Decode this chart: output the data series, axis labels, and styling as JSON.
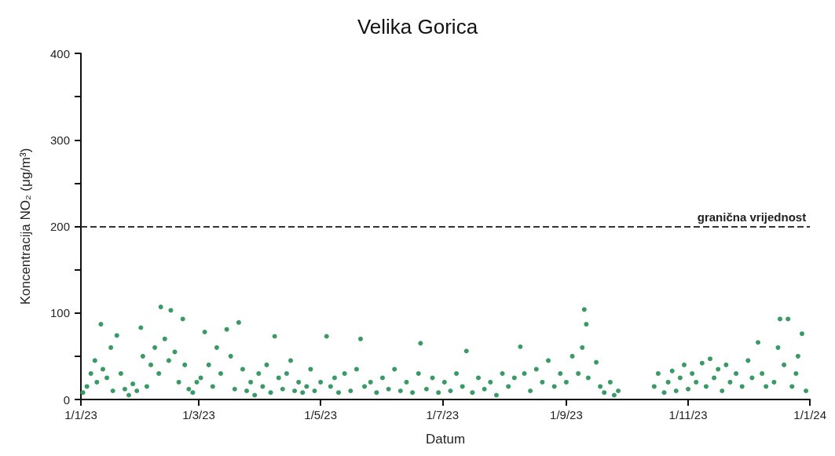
{
  "chart_data": {
    "type": "scatter",
    "title": "Velika Gorica",
    "xlabel": "Datum",
    "ylabel": "Koncentracija NO₂ (μg/m³)",
    "xlim": [
      "2023-01-01",
      "2024-01-01"
    ],
    "xticks": [
      {
        "value": "2023-01-01",
        "label": "1/1/23"
      },
      {
        "value": "2023-03-01",
        "label": "1/3/23"
      },
      {
        "value": "2023-05-01",
        "label": "1/5/23"
      },
      {
        "value": "2023-07-01",
        "label": "1/7/23"
      },
      {
        "value": "2023-09-01",
        "label": "1/9/23"
      },
      {
        "value": "2023-11-01",
        "label": "1/11/23"
      },
      {
        "value": "2024-01-01",
        "label": "1/1/24"
      }
    ],
    "ylim": [
      0,
      400
    ],
    "yticks": [
      0,
      {
        "value": 50,
        "label": null
      },
      100,
      {
        "value": 150,
        "label": null
      },
      200,
      {
        "value": 250,
        "label": null
      },
      300,
      {
        "value": 350,
        "label": null
      },
      400
    ],
    "grid": false,
    "marker": "circle",
    "ref_lines": [
      {
        "axis": "y",
        "value": 200,
        "label": "granična vrijednost",
        "color": "#333333",
        "line_style": "dashed"
      }
    ],
    "series": [
      {
        "color": "#3a9a66",
        "x": [
          "2023-01-02",
          "2023-01-04",
          "2023-01-06",
          "2023-01-08",
          "2023-01-09",
          "2023-01-11",
          "2023-01-12",
          "2023-01-14",
          "2023-01-16",
          "2023-01-17",
          "2023-01-19",
          "2023-01-21",
          "2023-01-23",
          "2023-01-25",
          "2023-01-27",
          "2023-01-29",
          "2023-01-31",
          "2023-02-01",
          "2023-02-03",
          "2023-02-05",
          "2023-02-07",
          "2023-02-09",
          "2023-02-10",
          "2023-02-12",
          "2023-02-14",
          "2023-02-15",
          "2023-02-17",
          "2023-02-19",
          "2023-02-21",
          "2023-02-22",
          "2023-02-24",
          "2023-02-26",
          "2023-02-28",
          "2023-03-02",
          "2023-03-04",
          "2023-03-06",
          "2023-03-08",
          "2023-03-10",
          "2023-03-12",
          "2023-03-15",
          "2023-03-17",
          "2023-03-19",
          "2023-03-21",
          "2023-03-23",
          "2023-03-25",
          "2023-03-27",
          "2023-03-29",
          "2023-03-31",
          "2023-04-02",
          "2023-04-04",
          "2023-04-06",
          "2023-04-08",
          "2023-04-10",
          "2023-04-12",
          "2023-04-14",
          "2023-04-16",
          "2023-04-18",
          "2023-04-20",
          "2023-04-22",
          "2023-04-24",
          "2023-04-26",
          "2023-04-28",
          "2023-05-01",
          "2023-05-04",
          "2023-05-06",
          "2023-05-08",
          "2023-05-10",
          "2023-05-13",
          "2023-05-16",
          "2023-05-19",
          "2023-05-21",
          "2023-05-23",
          "2023-05-26",
          "2023-05-29",
          "2023-06-01",
          "2023-06-04",
          "2023-06-07",
          "2023-06-10",
          "2023-06-13",
          "2023-06-16",
          "2023-06-19",
          "2023-06-20",
          "2023-06-23",
          "2023-06-26",
          "2023-06-29",
          "2023-07-02",
          "2023-07-05",
          "2023-07-08",
          "2023-07-11",
          "2023-07-13",
          "2023-07-16",
          "2023-07-19",
          "2023-07-22",
          "2023-07-25",
          "2023-07-28",
          "2023-07-31",
          "2023-08-03",
          "2023-08-06",
          "2023-08-09",
          "2023-08-11",
          "2023-08-14",
          "2023-08-17",
          "2023-08-20",
          "2023-08-23",
          "2023-08-26",
          "2023-08-29",
          "2023-09-01",
          "2023-09-04",
          "2023-09-07",
          "2023-09-09",
          "2023-09-10",
          "2023-09-11",
          "2023-09-12",
          "2023-09-16",
          "2023-09-18",
          "2023-09-20",
          "2023-09-23",
          "2023-09-25",
          "2023-09-27",
          "2023-10-15",
          "2023-10-17",
          "2023-10-20",
          "2023-10-22",
          "2023-10-24",
          "2023-10-26",
          "2023-10-28",
          "2023-10-30",
          "2023-11-01",
          "2023-11-03",
          "2023-11-05",
          "2023-11-08",
          "2023-11-10",
          "2023-11-12",
          "2023-11-14",
          "2023-11-16",
          "2023-11-18",
          "2023-11-20",
          "2023-11-22",
          "2023-11-25",
          "2023-11-28",
          "2023-12-01",
          "2023-12-03",
          "2023-12-06",
          "2023-12-08",
          "2023-12-10",
          "2023-12-14",
          "2023-12-16",
          "2023-12-17",
          "2023-12-19",
          "2023-12-21",
          "2023-12-23",
          "2023-12-25",
          "2023-12-26",
          "2023-12-28",
          "2023-12-30"
        ],
        "values": [
          8,
          15,
          30,
          45,
          20,
          87,
          35,
          25,
          60,
          10,
          74,
          30,
          12,
          5,
          18,
          10,
          83,
          50,
          15,
          40,
          60,
          30,
          107,
          70,
          45,
          103,
          55,
          20,
          93,
          40,
          12,
          8,
          20,
          25,
          78,
          40,
          15,
          60,
          30,
          81,
          50,
          12,
          89,
          35,
          10,
          20,
          5,
          30,
          15,
          40,
          8,
          73,
          25,
          12,
          30,
          45,
          10,
          20,
          8,
          15,
          35,
          10,
          20,
          73,
          15,
          25,
          8,
          30,
          10,
          35,
          70,
          15,
          20,
          8,
          25,
          12,
          35,
          10,
          20,
          8,
          30,
          65,
          12,
          25,
          8,
          20,
          10,
          30,
          15,
          56,
          8,
          25,
          12,
          20,
          5,
          30,
          15,
          25,
          61,
          30,
          10,
          35,
          20,
          45,
          15,
          30,
          20,
          50,
          30,
          60,
          104,
          87,
          25,
          43,
          15,
          8,
          20,
          5,
          10,
          15,
          30,
          8,
          20,
          33,
          10,
          25,
          40,
          12,
          30,
          20,
          42,
          15,
          47,
          25,
          35,
          10,
          40,
          20,
          30,
          15,
          45,
          25,
          66,
          30,
          15,
          20,
          60,
          93,
          40,
          93,
          15,
          30,
          50,
          76,
          10
        ]
      }
    ]
  }
}
